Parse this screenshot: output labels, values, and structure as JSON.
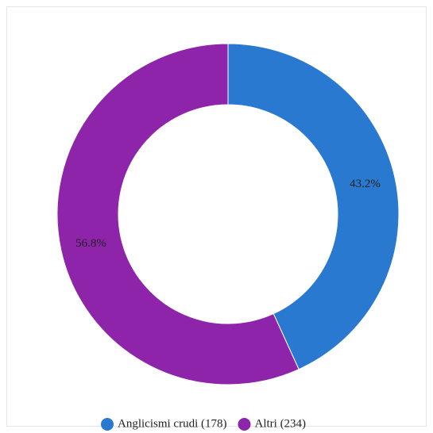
{
  "chart_data": {
    "type": "donut",
    "categories": [
      "Anglicismi crudi (178)",
      "Altri (234)"
    ],
    "values": [
      43.2,
      56.8
    ],
    "value_labels": [
      "43.2%",
      "56.8%"
    ],
    "colors": [
      "#2979d0",
      "#8e24aa"
    ]
  }
}
